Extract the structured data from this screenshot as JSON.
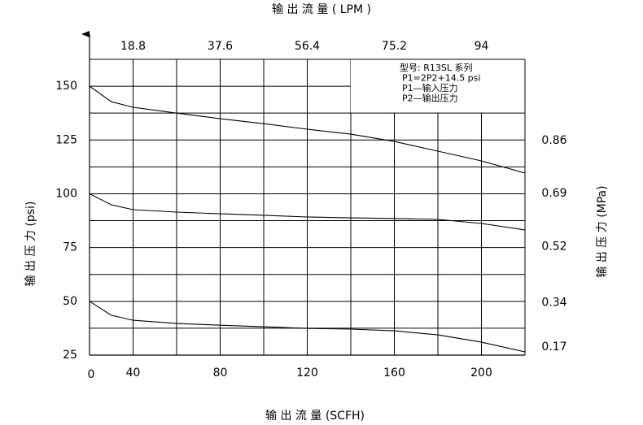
{
  "chart_data": {
    "type": "line",
    "title_top_axis": "输 出 流 量 ( LPM )",
    "x_label": "输 出 流 量 (SCFH)",
    "y_label": "输 出 压 力 (psi)",
    "y2_label": "输 出 压 力 (MPa)",
    "origin_label": "0",
    "annotations": [
      "型号: R13SL  系列",
      "P1=2P2+14.5 psi",
      "P1—输入压力",
      "P2—输出压力"
    ],
    "x": [
      20,
      30,
      40,
      60,
      80,
      100,
      120,
      140,
      160,
      180,
      200,
      220
    ],
    "series": [
      {
        "color": "#000000",
        "values": [
          150,
          142.8,
          140.2,
          137.5,
          134.9,
          132.6,
          130.0,
          127.7,
          124.3,
          119.8,
          115.3,
          109.6
        ]
      },
      {
        "color": "#000000",
        "values": [
          100,
          94.9,
          92.6,
          91.5,
          90.7,
          90.0,
          89.2,
          88.8,
          88.5,
          88.1,
          86.2,
          83.2
        ]
      },
      {
        "color": "#000000",
        "values": [
          50,
          43.5,
          41.2,
          39.7,
          38.9,
          38.2,
          37.4,
          37.1,
          36.3,
          34.4,
          31.0,
          26.5
        ]
      }
    ],
    "xlim": [
      20,
      220
    ],
    "xticks": [
      40,
      80,
      120,
      160,
      200
    ],
    "x2lim": [
      9.4,
      103.4
    ],
    "x2ticks": [
      18.8,
      37.6,
      56.4,
      75.2,
      94
    ],
    "ylim": [
      25,
      162.5
    ],
    "yticks": [
      25,
      50,
      75,
      100,
      125,
      150
    ],
    "y2lim": [
      0.172,
      1.12
    ],
    "y2ticks": [
      0.17,
      0.34,
      0.52,
      0.69,
      0.86
    ],
    "grid": true
  }
}
